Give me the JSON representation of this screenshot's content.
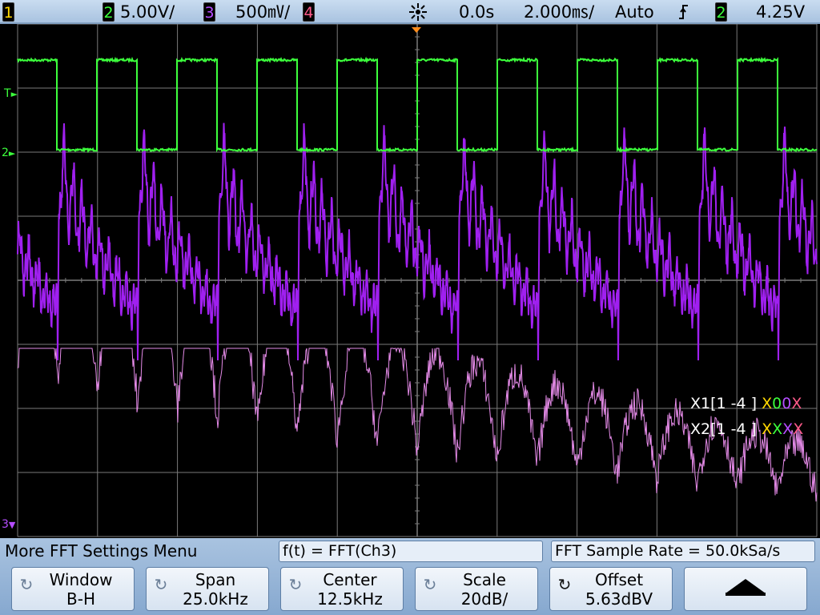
{
  "status_bar": {
    "ch1_badge": "1",
    "ch2_badge": "2",
    "ch2_scale": "5.00V/",
    "ch3_badge": "3",
    "ch3_scale": "500㎷/",
    "ch4_badge": "4",
    "acquire_icon": "run-star-icon",
    "time_delay": "0.0s",
    "time_scale": "2.000㎳/",
    "trigger_mode": "Auto",
    "trigger_slope_icon": "rising-edge-icon",
    "trigger_source_badge": "2",
    "trigger_level": "4.25V"
  },
  "markers": {
    "trigger_marker": "T",
    "ch2_ground": "2",
    "ch3_ground": "3"
  },
  "cursor_readout": {
    "x1_label": "X1[1 -4 ]",
    "x1_states": [
      "X",
      "0",
      "0",
      "X"
    ],
    "x2_label": "X2[1 -4 ]",
    "x2_states": [
      "X",
      "X",
      "X",
      "X"
    ],
    "state_colors": [
      "#ffd800",
      "#3cff3c",
      "#b54dff",
      "#ff5a8a"
    ]
  },
  "menu": {
    "title": "More FFT Settings Menu",
    "function_box": "f(t) = FFT(Ch3)",
    "sample_rate_box": "FFT Sample Rate = 50.0kSa/s",
    "softkeys": [
      {
        "line1": "Window",
        "line2": "B-H"
      },
      {
        "line1": "Span",
        "line2": "25.0kHz"
      },
      {
        "line1": "Center",
        "line2": "12.5kHz"
      },
      {
        "line1": "Scale",
        "line2": "20dB/"
      },
      {
        "line1": "Offset",
        "line2": "5.63dBV"
      },
      {
        "line1": "back-arrow-icon",
        "line2": ""
      }
    ]
  },
  "colors": {
    "ch2": "#3cff3c",
    "ch3": "#a020f0",
    "math": "#e58be8",
    "grid": "#7a7a7a",
    "trigger": "#ff8c1a"
  },
  "traces": {
    "ch2_signal": "square wave, about 10 periods across the screen, high level near top division, low level at channel-2 ground",
    "ch3_signal": "ringing pulse response synchronized to ch2 edges",
    "math_signal": "FFT of ch3, spectrum decreasing from left to right with periodic lobes"
  }
}
